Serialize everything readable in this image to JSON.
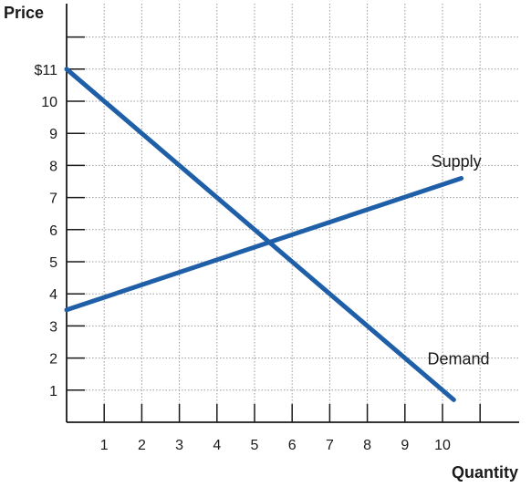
{
  "chart_data": {
    "type": "line",
    "xlabel": "Quantity",
    "ylabel": "Price",
    "xlim": [
      0,
      11
    ],
    "ylim": [
      0,
      12
    ],
    "grid": true,
    "x_ticks": [
      1,
      2,
      3,
      4,
      5,
      6,
      7,
      8,
      9,
      10
    ],
    "x_tick_labels": [
      "1",
      "2",
      "3",
      "4",
      "5",
      "6",
      "7",
      "8",
      "9",
      "10"
    ],
    "y_ticks": [
      1,
      2,
      3,
      4,
      5,
      6,
      7,
      8,
      9,
      10,
      11
    ],
    "y_tick_labels": [
      "1",
      "2",
      "3",
      "4",
      "5",
      "6",
      "7",
      "8",
      "9",
      "10",
      "$11"
    ],
    "series": [
      {
        "name": "Supply",
        "color": "#1f5fa8",
        "x": [
          0,
          10.5
        ],
        "y": [
          3.5,
          7.6
        ]
      },
      {
        "name": "Demand",
        "color": "#1f5fa8",
        "x": [
          0,
          10.3
        ],
        "y": [
          11,
          0.7
        ]
      }
    ]
  }
}
